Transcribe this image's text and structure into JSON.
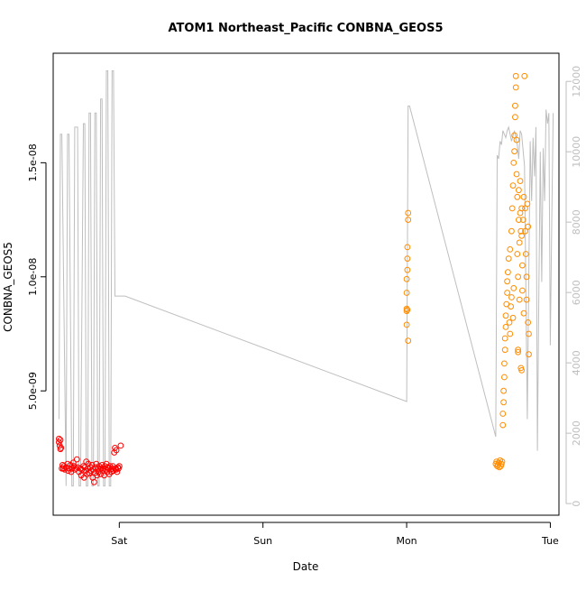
{
  "chart_data": {
    "type": "scatter",
    "title": "ATOM1 Northeast_Pacific CONBNA_GEOS5",
    "xlabel": "Date",
    "ylabel": "CONBNA_GEOS5",
    "x_axis": {
      "type": "date",
      "range_days": [
        -0.46,
        3.06
      ],
      "tick_positions_days": [
        0,
        1,
        2,
        3
      ],
      "tick_labels": [
        "Sat",
        "Sun",
        "Mon",
        "Tue"
      ]
    },
    "y_left": {
      "range": [
        -4.5e-10,
        1.98e-08
      ],
      "ticks": [
        5e-09,
        1e-08,
        1.5e-08
      ],
      "tick_labels": [
        "5.0e-09",
        "1.0e-08",
        "1.5e-08"
      ]
    },
    "y_right": {
      "label": "",
      "range": [
        -330,
        12800
      ],
      "ticks": [
        0,
        2000,
        4000,
        6000,
        8000,
        10000,
        12000
      ],
      "tick_labels": [
        "0",
        "2000",
        "4000",
        "6000",
        "8000",
        "10000",
        "12000"
      ]
    },
    "colors": {
      "series_red": "#ff0000",
      "series_orange": "#ff8c00",
      "altitude_line": "#bebebe",
      "frame": "#000000"
    },
    "series": [
      {
        "color": "red",
        "marker": "open-circle",
        "points": [
          [
            -0.42,
            2.9e-09
          ],
          [
            -0.42,
            2.75e-09
          ],
          [
            -0.415,
            2.6e-09
          ],
          [
            -0.41,
            2.85e-09
          ],
          [
            -0.41,
            2.45e-09
          ],
          [
            -0.405,
            2.5e-09
          ],
          [
            -0.4,
            1.6e-09
          ],
          [
            -0.395,
            1.75e-09
          ],
          [
            -0.39,
            1.6e-09
          ],
          [
            -0.385,
            1.7e-09
          ],
          [
            -0.38,
            1.55e-09
          ],
          [
            -0.37,
            1.65e-09
          ],
          [
            -0.36,
            1.8e-09
          ],
          [
            -0.355,
            1.5e-09
          ],
          [
            -0.35,
            1.6e-09
          ],
          [
            -0.34,
            1.75e-09
          ],
          [
            -0.335,
            1.45e-09
          ],
          [
            -0.33,
            1.6e-09
          ],
          [
            -0.32,
            1.85e-09
          ],
          [
            -0.315,
            1.7e-09
          ],
          [
            -0.31,
            1.55e-09
          ],
          [
            -0.3,
            1.6e-09
          ],
          [
            -0.295,
            2e-09
          ],
          [
            -0.29,
            1.65e-09
          ],
          [
            -0.28,
            1.45e-09
          ],
          [
            -0.27,
            1.6e-09
          ],
          [
            -0.265,
            1.3e-09
          ],
          [
            -0.26,
            1.55e-09
          ],
          [
            -0.25,
            1.7e-09
          ],
          [
            -0.245,
            1.2e-09
          ],
          [
            -0.24,
            1.65e-09
          ],
          [
            -0.235,
            1.5e-09
          ],
          [
            -0.23,
            1.9e-09
          ],
          [
            -0.225,
            1.35e-09
          ],
          [
            -0.22,
            1.6e-09
          ],
          [
            -0.215,
            1.8e-09
          ],
          [
            -0.21,
            1.4e-09
          ],
          [
            -0.2,
            1.65e-09
          ],
          [
            -0.195,
            1.5e-09
          ],
          [
            -0.19,
            1.75e-09
          ],
          [
            -0.185,
            1.2e-09
          ],
          [
            -0.18,
            1.55e-09
          ],
          [
            -0.175,
            1e-09
          ],
          [
            -0.17,
            1.4e-09
          ],
          [
            -0.165,
            1.65e-09
          ],
          [
            -0.16,
            1.8e-09
          ],
          [
            -0.155,
            1.3e-09
          ],
          [
            -0.15,
            1.6e-09
          ],
          [
            -0.145,
            1.45e-09
          ],
          [
            -0.14,
            1.7e-09
          ],
          [
            -0.135,
            1.55e-09
          ],
          [
            -0.13,
            1.35e-09
          ],
          [
            -0.125,
            1.6e-09
          ],
          [
            -0.12,
            1.75e-09
          ],
          [
            -0.115,
            1.5e-09
          ],
          [
            -0.11,
            1.6e-09
          ],
          [
            -0.105,
            1.3e-09
          ],
          [
            -0.1,
            1.7e-09
          ],
          [
            -0.095,
            1.55e-09
          ],
          [
            -0.09,
            1.8e-09
          ],
          [
            -0.085,
            1.45e-09
          ],
          [
            -0.08,
            1.65e-09
          ],
          [
            -0.075,
            1.6e-09
          ],
          [
            -0.07,
            1.35e-09
          ],
          [
            -0.065,
            1.7e-09
          ],
          [
            -0.06,
            1.55e-09
          ],
          [
            -0.055,
            1.45e-09
          ],
          [
            -0.05,
            1.6e-09
          ],
          [
            -0.045,
            1.7e-09
          ],
          [
            -0.04,
            1.5e-09
          ],
          [
            -0.035,
            2.3e-09
          ],
          [
            -0.03,
            2.5e-09
          ],
          [
            -0.025,
            1.6e-09
          ],
          [
            -0.02,
            1.55e-09
          ],
          [
            -0.015,
            1.45e-09
          ],
          [
            -0.01,
            1.65e-09
          ],
          [
            -0.005,
            1.6e-09
          ],
          [
            0.0,
            1.7e-09
          ],
          [
            -0.02,
            2.4e-09
          ],
          [
            0.01,
            2.6e-09
          ]
        ]
      },
      {
        "color": "orange",
        "marker": "open-circle",
        "points": [
          [
            2.01,
            1.28e-08
          ],
          [
            2.01,
            1.25e-08
          ],
          [
            2.005,
            1.13e-08
          ],
          [
            2.005,
            1.08e-08
          ],
          [
            2.005,
            1.03e-08
          ],
          [
            2.0,
            9.9e-09
          ],
          [
            2.0,
            9.3e-09
          ],
          [
            2.0,
            8.6e-09
          ],
          [
            2.0,
            8.5e-09
          ],
          [
            2.005,
            8.55e-09
          ],
          [
            2.0,
            7.9e-09
          ],
          [
            2.01,
            7.2e-09
          ],
          [
            2.62,
            1.8e-09
          ],
          [
            2.63,
            1.7e-09
          ],
          [
            2.625,
            1.9e-09
          ],
          [
            2.635,
            1.75e-09
          ],
          [
            2.64,
            1.85e-09
          ],
          [
            2.645,
            1.65e-09
          ],
          [
            2.65,
            1.95e-09
          ],
          [
            2.655,
            1.7e-09
          ],
          [
            2.66,
            1.8e-09
          ],
          [
            2.665,
            1.9e-09
          ],
          [
            2.67,
            3.5e-09
          ],
          [
            2.67,
            4e-09
          ],
          [
            2.675,
            4.5e-09
          ],
          [
            2.675,
            5e-09
          ],
          [
            2.68,
            5.6e-09
          ],
          [
            2.68,
            6.2e-09
          ],
          [
            2.685,
            6.8e-09
          ],
          [
            2.685,
            7.3e-09
          ],
          [
            2.69,
            7.8e-09
          ],
          [
            2.69,
            8.3e-09
          ],
          [
            2.695,
            8.8e-09
          ],
          [
            2.7,
            9.3e-09
          ],
          [
            2.7,
            9.8e-09
          ],
          [
            2.705,
            1.02e-08
          ],
          [
            2.71,
            1.08e-08
          ],
          [
            2.715,
            8e-09
          ],
          [
            2.72,
            7.5e-09
          ],
          [
            2.72,
            1.12e-08
          ],
          [
            2.725,
            8.7e-09
          ],
          [
            2.73,
            1.2e-08
          ],
          [
            2.73,
            9.1e-09
          ],
          [
            2.735,
            1.3e-08
          ],
          [
            2.74,
            8.2e-09
          ],
          [
            2.74,
            1.4e-08
          ],
          [
            2.745,
            1.5e-08
          ],
          [
            2.745,
            9.5e-09
          ],
          [
            2.75,
            1.55e-08
          ],
          [
            2.75,
            1.62e-08
          ],
          [
            2.755,
            1.7e-08
          ],
          [
            2.755,
            1.75e-08
          ],
          [
            2.76,
            1.83e-08
          ],
          [
            2.76,
            1.88e-08
          ],
          [
            2.765,
            1.6e-08
          ],
          [
            2.765,
            1.45e-08
          ],
          [
            2.77,
            1.35e-08
          ],
          [
            2.77,
            1.1e-08
          ],
          [
            2.775,
            1e-08
          ],
          [
            2.775,
            6.8e-09
          ],
          [
            2.775,
            6.7e-09
          ],
          [
            2.78,
            1.38e-08
          ],
          [
            2.78,
            1.25e-08
          ],
          [
            2.785,
            1.15e-08
          ],
          [
            2.785,
            9e-09
          ],
          [
            2.79,
            1.42e-08
          ],
          [
            2.79,
            1.28e-08
          ],
          [
            2.795,
            1.2e-08
          ],
          [
            2.795,
            6e-09
          ],
          [
            2.8,
            1.3e-08
          ],
          [
            2.8,
            1.18e-08
          ],
          [
            2.8,
            5.9e-09
          ],
          [
            2.805,
            1.05e-08
          ],
          [
            2.805,
            9.4e-09
          ],
          [
            2.81,
            1.25e-08
          ],
          [
            2.815,
            1.35e-08
          ],
          [
            2.815,
            8.4e-09
          ],
          [
            2.82,
            1.88e-08
          ],
          [
            2.825,
            1.3e-08
          ],
          [
            2.825,
            1.2e-08
          ],
          [
            2.83,
            1.1e-08
          ],
          [
            2.835,
            1e-08
          ],
          [
            2.835,
            9e-09
          ],
          [
            2.84,
            1.32e-08
          ],
          [
            2.845,
            1.22e-08
          ],
          [
            2.845,
            8e-09
          ],
          [
            2.85,
            7.5e-09
          ],
          [
            2.85,
            6.6e-09
          ]
        ]
      }
    ],
    "altitude_line": {
      "color": "grey",
      "axis": "right",
      "x": [
        -0.42,
        -0.41,
        -0.4,
        -0.37,
        -0.36,
        -0.35,
        -0.33,
        -0.32,
        -0.31,
        -0.29,
        -0.28,
        -0.27,
        -0.25,
        -0.24,
        -0.23,
        -0.22,
        -0.21,
        -0.2,
        -0.19,
        -0.18,
        -0.17,
        -0.16,
        -0.15,
        -0.14,
        -0.13,
        -0.12,
        -0.11,
        -0.1,
        -0.09,
        -0.08,
        -0.07,
        -0.06,
        -0.05,
        -0.04,
        -0.03,
        -0.02,
        0.0,
        0.03,
        0.04,
        2.0,
        2.01,
        2.02,
        2.62,
        2.63,
        2.64,
        2.65,
        2.66,
        2.67,
        2.68,
        2.69,
        2.7,
        2.71,
        2.72,
        2.73,
        2.75,
        2.77,
        2.78,
        2.79,
        2.8,
        2.82,
        2.84,
        2.86,
        2.87,
        2.88,
        2.89,
        2.9,
        2.91,
        2.92,
        2.93,
        2.94,
        2.95,
        2.96,
        2.97,
        2.98,
        2.99,
        3.0,
        3.01,
        3.02
      ],
      "y": [
        2400,
        10500,
        10500,
        500,
        10500,
        10500,
        500,
        500,
        10700,
        10700,
        500,
        500,
        10800,
        10800,
        500,
        500,
        11100,
        11100,
        500,
        500,
        11100,
        11100,
        500,
        500,
        11500,
        11500,
        500,
        500,
        12300,
        12300,
        500,
        500,
        12300,
        12300,
        5900,
        5900,
        5900,
        5900,
        5900,
        2900,
        11300,
        11300,
        1900,
        9900,
        9800,
        10300,
        10200,
        10600,
        10500,
        10400,
        10600,
        10700,
        10500,
        10300,
        10600,
        10200,
        9800,
        10600,
        10500,
        9600,
        2400,
        10300,
        8600,
        10400,
        9300,
        10700,
        1500,
        6000,
        10000,
        6300,
        10100,
        8600,
        11200,
        10800,
        11100,
        4500,
        8000,
        11100
      ]
    }
  }
}
